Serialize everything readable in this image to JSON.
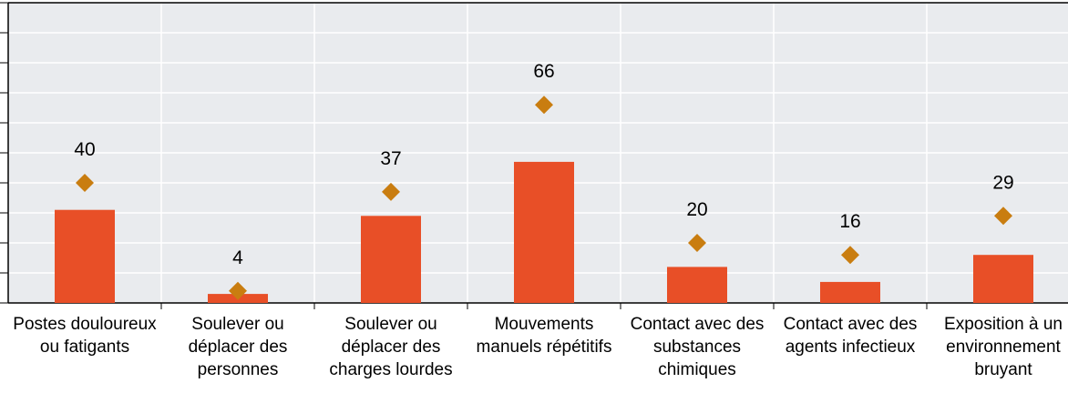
{
  "chart_data": {
    "type": "bar",
    "categories": [
      "Postes douloureux ou fatigants",
      "Soulever ou déplacer des personnes",
      "Soulever ou déplacer des charges lourdes",
      "Mouvements manuels répétitifs",
      "Contact avec des substances chimiques",
      "Contact avec des agents infectieux",
      "Exposition à un environnement bruyant"
    ],
    "series": [
      {
        "type": "bar",
        "color": "#e84f27",
        "values": [
          31,
          3,
          29,
          47,
          12,
          7,
          16
        ]
      },
      {
        "type": "diamond",
        "color": "#c97d10",
        "values": [
          40,
          4,
          37,
          66,
          20,
          16,
          29
        ],
        "labels": true
      }
    ],
    "ylim": [
      0,
      100
    ],
    "yticks": [
      0,
      10,
      20,
      30,
      40,
      50,
      60,
      70,
      80,
      90,
      100
    ],
    "grid": true
  }
}
